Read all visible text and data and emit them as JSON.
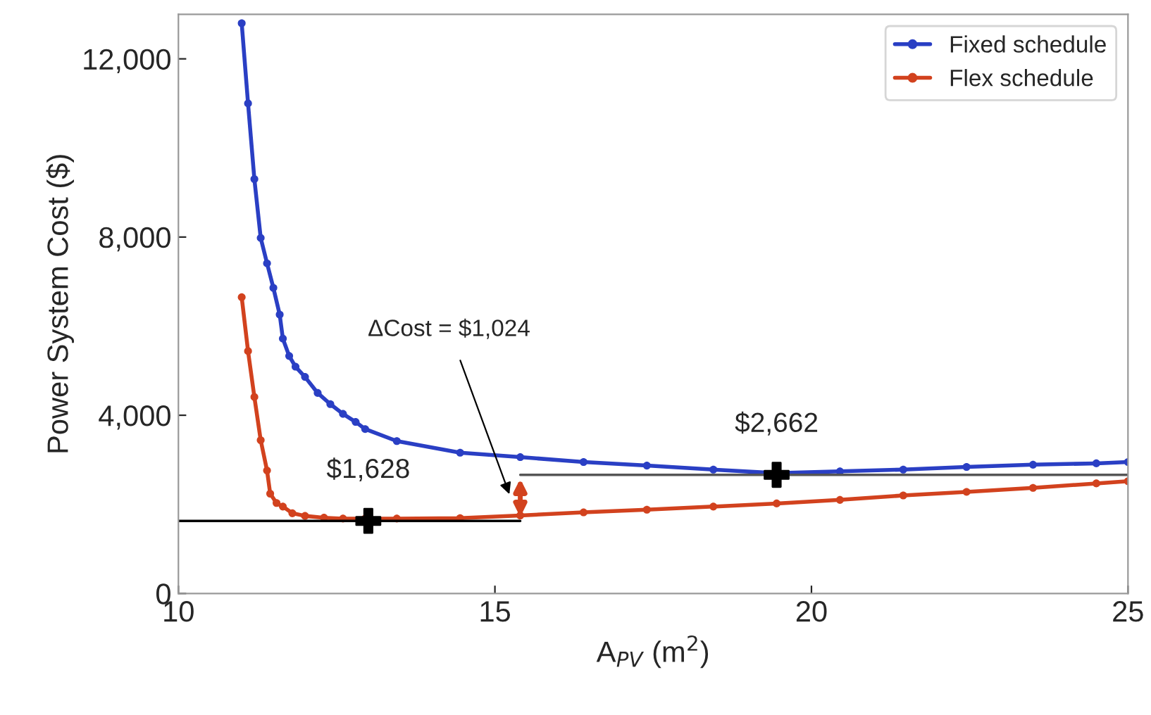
{
  "chart_data": {
    "type": "line",
    "xlabel": "A$_{PV}$ (m$^{2}$)",
    "ylabel": "Power System Cost ($)",
    "xlim": [
      10,
      25
    ],
    "ylim": [
      0,
      13000
    ],
    "xticks": [
      10,
      15,
      20,
      25
    ],
    "yticks": [
      0,
      {
        "value": 4000,
        "label": "4,000"
      },
      {
        "value": 8000,
        "label": "8,000"
      },
      {
        "value": 12000,
        "label": "12,000"
      }
    ],
    "grid": false,
    "legend": "top right",
    "marker": "circle",
    "line_style": "solid",
    "series": [
      {
        "name": "Fixed schedule",
        "color": "#2a3fc4",
        "x": [
          11.0,
          11.1,
          11.2,
          11.3,
          11.4,
          11.5,
          11.6,
          11.65,
          11.75,
          11.85,
          12.0,
          12.2,
          12.4,
          12.6,
          12.8,
          12.95,
          13.45,
          14.45,
          15.4,
          16.4,
          17.4,
          18.45,
          19.45,
          20.45,
          21.45,
          22.45,
          23.5,
          24.5,
          25
        ],
        "values": [
          12800,
          11000,
          9300,
          7980,
          7410,
          6860,
          6260,
          5720,
          5330,
          5090,
          4860,
          4500,
          4250,
          4030,
          3850,
          3690,
          3420,
          3160,
          3060,
          2950,
          2870,
          2780,
          2700,
          2740,
          2780,
          2840,
          2890,
          2920,
          2950
        ]
      },
      {
        "name": "Flex schedule",
        "color": "#d2421e",
        "x": [
          11.0,
          11.1,
          11.2,
          11.3,
          11.4,
          11.45,
          11.55,
          11.65,
          11.8,
          12.0,
          12.3,
          12.6,
          12.95,
          13.45,
          14.45,
          15.4,
          16.4,
          17.4,
          18.45,
          19.45,
          20.45,
          21.45,
          22.45,
          23.5,
          24.5,
          25
        ],
        "values": [
          6650,
          5440,
          4410,
          3440,
          2760,
          2240,
          2030,
          1950,
          1800,
          1740,
          1700,
          1680,
          1680,
          1680,
          1690,
          1750,
          1820,
          1880,
          1950,
          2020,
          2100,
          2200,
          2280,
          2370,
          2470,
          2520
        ]
      },
      {
        "type": "line",
        "color": "#000000",
        "marker": "none",
        "x": [
          10,
          15.4
        ],
        "values": [
          1628,
          1628
        ]
      },
      {
        "type": "line",
        "color": "#555555",
        "marker": "none",
        "x": [
          15.4,
          25
        ],
        "values": [
          2662,
          2662
        ]
      },
      {
        "type": "scatter",
        "color": "#000000",
        "marker": "cross",
        "x": [
          13.0,
          19.45
        ],
        "values": [
          1628,
          2662
        ]
      }
    ],
    "annotations": [
      {
        "text": "$1,628",
        "x": 13.0,
        "y": 1628
      },
      {
        "text": "$2,662",
        "x": 19.45,
        "y": 2662
      },
      "ΔCost = $1,024"
    ]
  }
}
